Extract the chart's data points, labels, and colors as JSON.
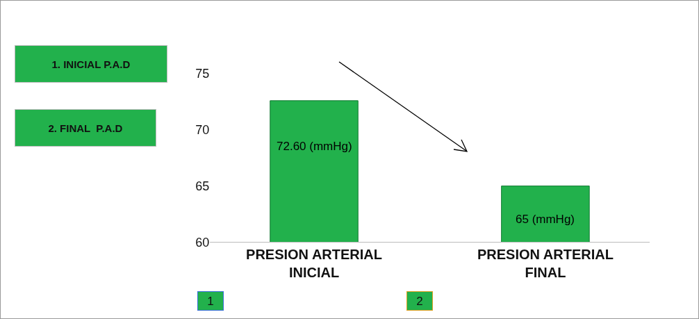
{
  "chart_data": {
    "type": "bar",
    "categories": [
      "PRESION ARTERIAL INICIAL",
      "PRESION ARTERIAL FINAL"
    ],
    "values": [
      72.6,
      65
    ],
    "color": "#22b14c",
    "value_labels": [
      "72.60 (mmHg)",
      "65 (mmHg)"
    ],
    "ylim": [
      60,
      75
    ],
    "yticks": [
      60,
      65,
      70,
      75
    ],
    "grid": false,
    "annotations": [
      "1. INICIAL P.A.D",
      "2. FINAL  P.A.D",
      "1",
      "2"
    ]
  }
}
